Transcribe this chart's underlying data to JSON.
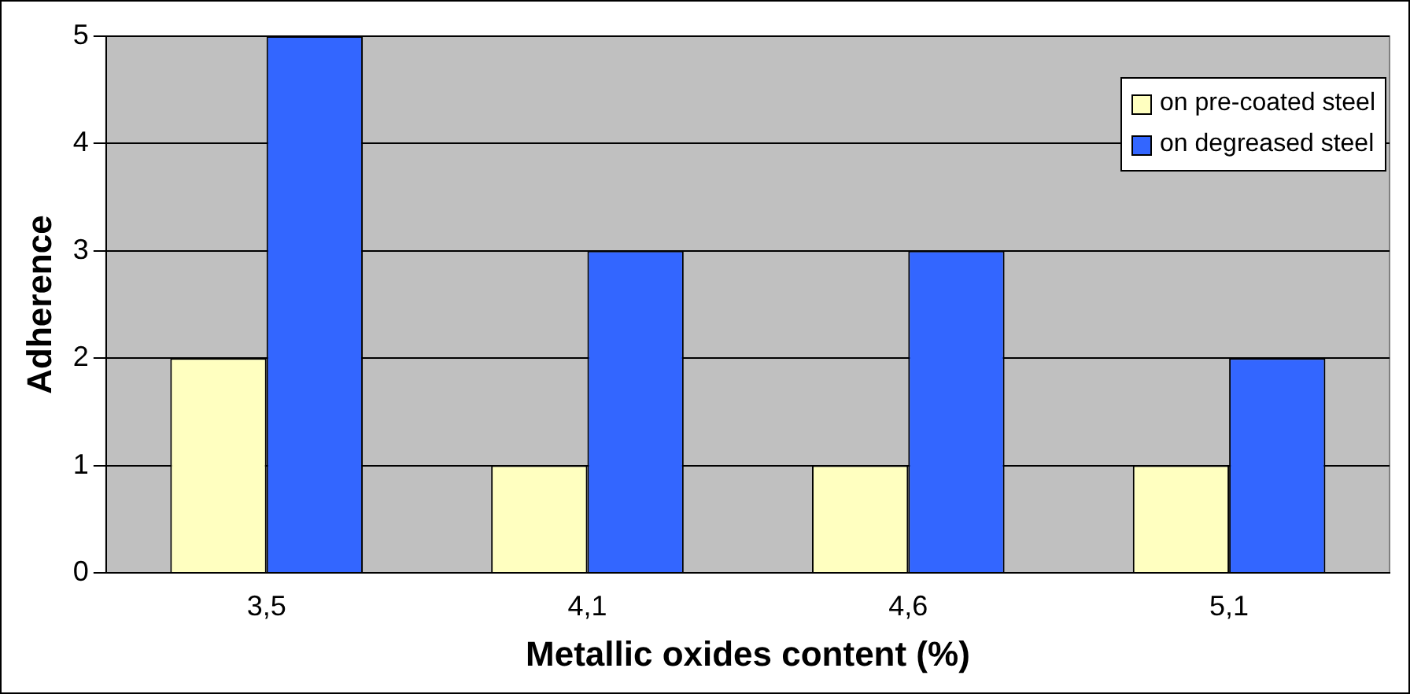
{
  "chart_data": {
    "type": "bar",
    "xlabel": "Metallic oxides content (%)",
    "ylabel": "Adherence",
    "categories": [
      "3,5",
      "4,1",
      "4,6",
      "5,1"
    ],
    "series": [
      {
        "name": "on pre-coated steel",
        "color": "#ffffc0",
        "values": [
          2,
          1,
          1,
          1
        ]
      },
      {
        "name": "on degreased steel",
        "color": "#3366ff",
        "values": [
          5,
          3,
          3,
          2
        ]
      }
    ],
    "ylim": [
      0,
      5
    ],
    "yticks": [
      0,
      1,
      2,
      3,
      4,
      5
    ],
    "grid": "y",
    "legend": "top right"
  }
}
